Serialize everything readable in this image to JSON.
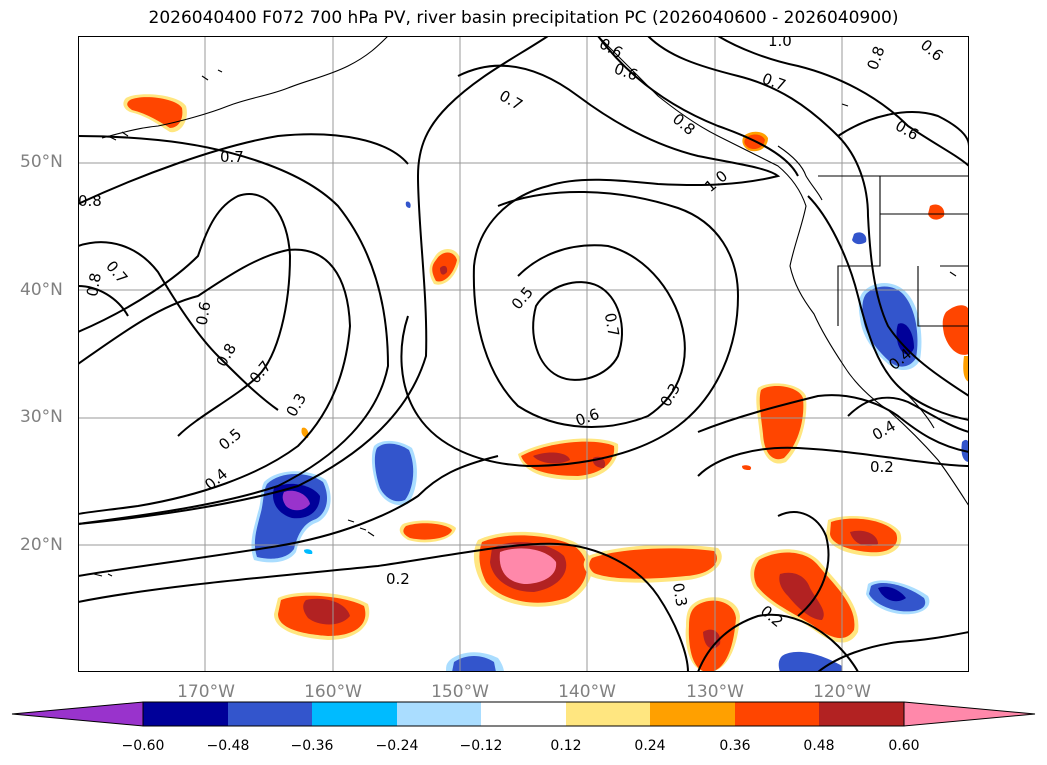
{
  "title": "2026040400 F072 700 hPa PV, river basin precipitation PC (2026040600 - 2026040900)",
  "lat_labels": [
    "50°N",
    "40°N",
    "30°N",
    "20°N"
  ],
  "lon_labels": [
    "170°W",
    "160°W",
    "150°W",
    "140°W",
    "130°W",
    "120°W"
  ],
  "contour_labels": [
    "0.8",
    "0.7",
    "0.6",
    "0.8",
    "0.7",
    "0.5",
    "0.4",
    "0.3",
    "0.5",
    "0.7",
    "0.6",
    "0.3",
    "0.7",
    "0.6",
    "1.0",
    "0.7",
    "1.0",
    "0.8",
    "0.6",
    "0.8",
    "0.6",
    "0.8",
    "0.7",
    "0.6",
    "0.4",
    "0.4",
    "0.2",
    "0.2",
    "0.3",
    "0.2"
  ],
  "colorbar": {
    "tick_labels": [
      "−0.60",
      "−0.48",
      "−0.36",
      "−0.24",
      "−0.12",
      "0.12",
      "0.24",
      "0.36",
      "0.48",
      "0.60"
    ],
    "colors": [
      "#9933cc",
      "#000099",
      "#3355cc",
      "#00bbff",
      "#aaddff",
      "#ffffff",
      "#ffe680",
      "#ffa000",
      "#ff4500",
      "#b22222",
      "#ff88aa"
    ]
  },
  "colors": {
    "contour": "#000000",
    "grid": "#999999",
    "coast": "#000000"
  }
}
